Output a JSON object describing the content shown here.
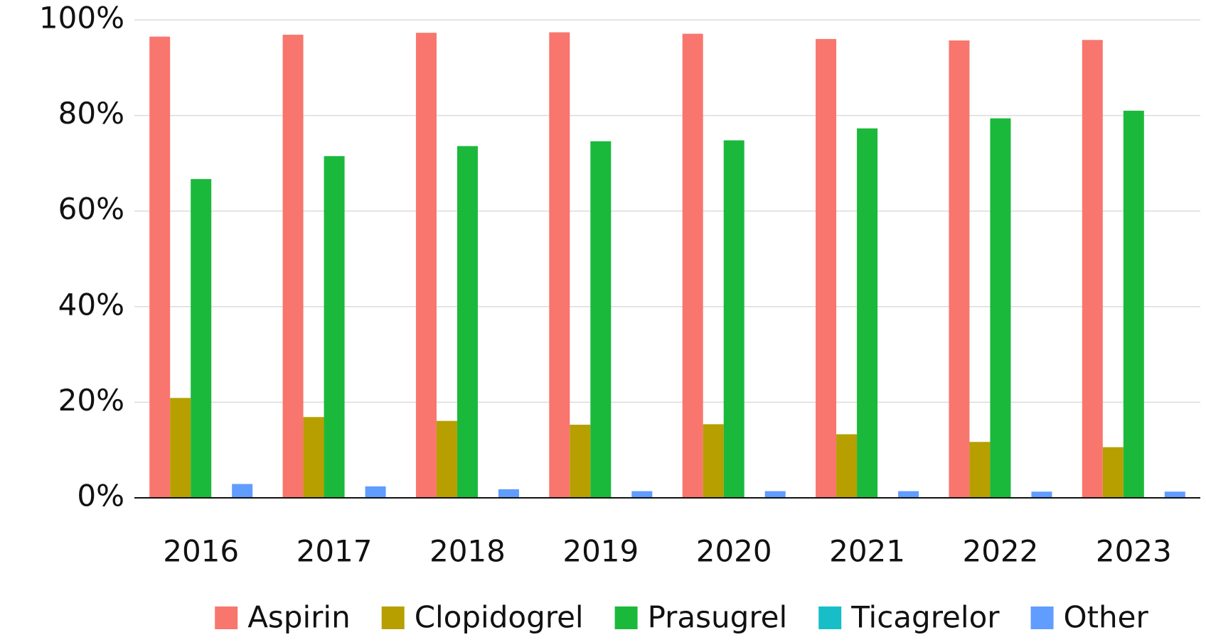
{
  "chart_data": {
    "type": "bar",
    "categories": [
      "2016",
      "2017",
      "2018",
      "2019",
      "2020",
      "2021",
      "2022",
      "2023"
    ],
    "series": [
      {
        "name": "Aspirin",
        "color": "#f8766d",
        "values": [
          96.5,
          96.9,
          97.3,
          97.4,
          97.1,
          96.0,
          95.7,
          95.8
        ]
      },
      {
        "name": "Clopidogrel",
        "color": "#b79f00",
        "values": [
          20.9,
          16.9,
          16.1,
          15.3,
          15.4,
          13.3,
          11.7,
          10.6
        ]
      },
      {
        "name": "Prasugrel",
        "color": "#1bb93b",
        "values": [
          66.7,
          71.5,
          73.6,
          74.6,
          74.8,
          77.3,
          79.4,
          81.0
        ]
      },
      {
        "name": "Ticagrelor",
        "color": "#17bec8",
        "values": [
          0.1,
          0.1,
          0.1,
          0.1,
          0.1,
          0.1,
          0.1,
          0.1
        ]
      },
      {
        "name": "Other",
        "color": "#619cff",
        "values": [
          2.9,
          2.4,
          1.8,
          1.4,
          1.4,
          1.4,
          1.3,
          1.3
        ]
      }
    ],
    "ylim": [
      0,
      100
    ],
    "yticks": [
      {
        "value": 0,
        "label": "0%"
      },
      {
        "value": 20,
        "label": "20%"
      },
      {
        "value": 40,
        "label": "40%"
      },
      {
        "value": 60,
        "label": "60%"
      },
      {
        "value": 80,
        "label": "80%"
      },
      {
        "value": 100,
        "label": "100%"
      }
    ],
    "grid": true,
    "legend": "bottom"
  }
}
